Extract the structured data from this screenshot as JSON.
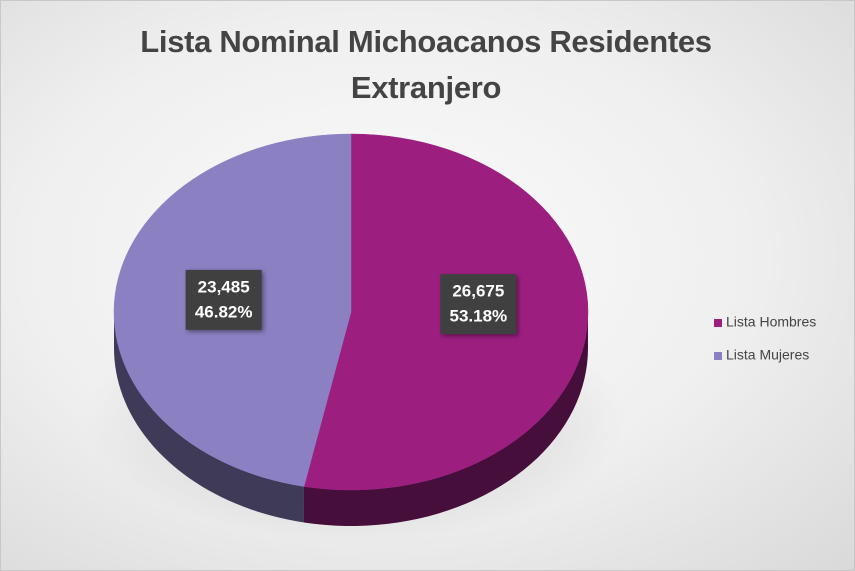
{
  "chart_data": {
    "type": "pie",
    "title": "Lista Nominal Michoacanos Residentes Extranjero",
    "categories": [
      "Lista Hombres",
      "Lista Mujeres"
    ],
    "values": [
      26675,
      23485
    ],
    "value_labels": [
      "26,675",
      "23,485"
    ],
    "percentages": [
      53.18,
      46.82
    ],
    "percentage_labels": [
      "53.18%",
      "46.82%"
    ],
    "colors": [
      "#9c1f80",
      "#8a80c2"
    ],
    "legend": "right"
  }
}
